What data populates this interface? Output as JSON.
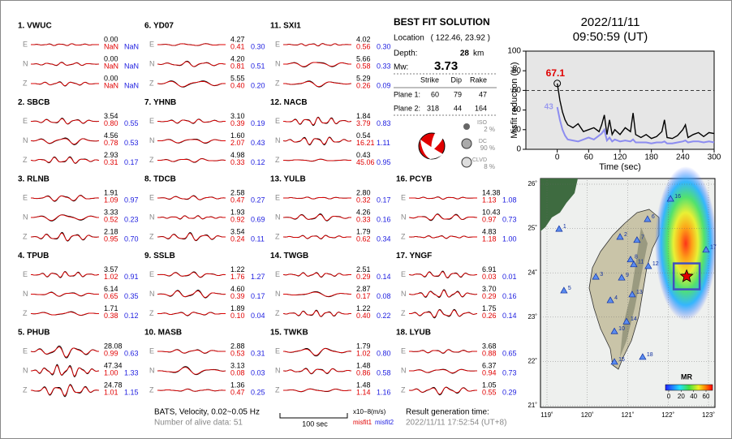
{
  "stations": [
    {
      "title": "1. VWUC",
      "components": [
        {
          "label": "E",
          "amplitude": "0.00",
          "misfit1": "NaN",
          "misfit2": "NaN"
        },
        {
          "label": "N",
          "amplitude": "0.00",
          "misfit1": "NaN",
          "misfit2": "NaN"
        },
        {
          "label": "Z",
          "amplitude": "0.00",
          "misfit1": "NaN",
          "misfit2": "NaN"
        }
      ]
    },
    {
      "title": "2. SBCB",
      "components": [
        {
          "label": "E",
          "amplitude": "3.54",
          "misfit1": "0.80",
          "misfit2": "0.55"
        },
        {
          "label": "N",
          "amplitude": "4.56",
          "misfit1": "0.78",
          "misfit2": "0.53"
        },
        {
          "label": "Z",
          "amplitude": "2.93",
          "misfit1": "0.31",
          "misfit2": "0.17"
        }
      ]
    },
    {
      "title": "3. RLNB",
      "components": [
        {
          "label": "E",
          "amplitude": "1.91",
          "misfit1": "1.09",
          "misfit2": "0.97"
        },
        {
          "label": "N",
          "amplitude": "3.33",
          "misfit1": "0.52",
          "misfit2": "0.23"
        },
        {
          "label": "Z",
          "amplitude": "2.18",
          "misfit1": "0.95",
          "misfit2": "0.70"
        }
      ]
    },
    {
      "title": "4. TPUB",
      "components": [
        {
          "label": "E",
          "amplitude": "3.57",
          "misfit1": "1.02",
          "misfit2": "0.91"
        },
        {
          "label": "N",
          "amplitude": "6.14",
          "misfit1": "0.65",
          "misfit2": "0.35"
        },
        {
          "label": "Z",
          "amplitude": "1.71",
          "misfit1": "0.38",
          "misfit2": "0.12"
        }
      ]
    },
    {
      "title": "5. PHUB",
      "components": [
        {
          "label": "E",
          "amplitude": "28.08",
          "misfit1": "0.99",
          "misfit2": "0.63"
        },
        {
          "label": "N",
          "amplitude": "47.34",
          "misfit1": "1.00",
          "misfit2": "1.33"
        },
        {
          "label": "Z",
          "amplitude": "24.78",
          "misfit1": "1.01",
          "misfit2": "1.15"
        }
      ]
    },
    {
      "title": "6. YD07",
      "components": [
        {
          "label": "E",
          "amplitude": "4.27",
          "misfit1": "0.41",
          "misfit2": "0.30"
        },
        {
          "label": "N",
          "amplitude": "4.20",
          "misfit1": "0.81",
          "misfit2": "0.51"
        },
        {
          "label": "Z",
          "amplitude": "5.55",
          "misfit1": "0.40",
          "misfit2": "0.20"
        }
      ]
    },
    {
      "title": "7. YHNB",
      "components": [
        {
          "label": "E",
          "amplitude": "3.10",
          "misfit1": "0.39",
          "misfit2": "0.19"
        },
        {
          "label": "N",
          "amplitude": "1.60",
          "misfit1": "2.07",
          "misfit2": "0.43"
        },
        {
          "label": "Z",
          "amplitude": "4.98",
          "misfit1": "0.33",
          "misfit2": "0.12"
        }
      ]
    },
    {
      "title": "8. TDCB",
      "components": [
        {
          "label": "E",
          "amplitude": "2.58",
          "misfit1": "0.47",
          "misfit2": "0.27"
        },
        {
          "label": "N",
          "amplitude": "1.93",
          "misfit1": "0.92",
          "misfit2": "0.69"
        },
        {
          "label": "Z",
          "amplitude": "3.54",
          "misfit1": "0.24",
          "misfit2": "0.11"
        }
      ]
    },
    {
      "title": "9. SSLB",
      "components": [
        {
          "label": "E",
          "amplitude": "1.22",
          "misfit1": "1.76",
          "misfit2": "1.27"
        },
        {
          "label": "N",
          "amplitude": "4.60",
          "misfit1": "0.39",
          "misfit2": "0.17"
        },
        {
          "label": "Z",
          "amplitude": "1.89",
          "misfit1": "0.10",
          "misfit2": "0.04"
        }
      ]
    },
    {
      "title": "10. MASB",
      "components": [
        {
          "label": "E",
          "amplitude": "2.88",
          "misfit1": "0.53",
          "misfit2": "0.31"
        },
        {
          "label": "N",
          "amplitude": "3.13",
          "misfit1": "0.08",
          "misfit2": "0.03"
        },
        {
          "label": "Z",
          "amplitude": "1.36",
          "misfit1": "0.47",
          "misfit2": "0.25"
        }
      ]
    },
    {
      "title": "11. SXI1",
      "components": [
        {
          "label": "E",
          "amplitude": "4.02",
          "misfit1": "0.56",
          "misfit2": "0.30"
        },
        {
          "label": "N",
          "amplitude": "5.66",
          "misfit1": "0.58",
          "misfit2": "0.33"
        },
        {
          "label": "Z",
          "amplitude": "5.29",
          "misfit1": "0.26",
          "misfit2": "0.09"
        }
      ]
    },
    {
      "title": "12. NACB",
      "components": [
        {
          "label": "E",
          "amplitude": "1.84",
          "misfit1": "3.79",
          "misfit2": "0.83"
        },
        {
          "label": "N",
          "amplitude": "0.54",
          "misfit1": "16.21",
          "misfit2": "1.11"
        },
        {
          "label": "Z",
          "amplitude": "0.43",
          "misfit1": "45.06",
          "misfit2": "0.95"
        }
      ]
    },
    {
      "title": "13. YULB",
      "components": [
        {
          "label": "E",
          "amplitude": "2.80",
          "misfit1": "0.32",
          "misfit2": "0.17"
        },
        {
          "label": "N",
          "amplitude": "4.26",
          "misfit1": "0.33",
          "misfit2": "0.16"
        },
        {
          "label": "Z",
          "amplitude": "1.79",
          "misfit1": "0.62",
          "misfit2": "0.34"
        }
      ]
    },
    {
      "title": "14. TWGB",
      "components": [
        {
          "label": "E",
          "amplitude": "2.51",
          "misfit1": "0.29",
          "misfit2": "0.14"
        },
        {
          "label": "N",
          "amplitude": "2.87",
          "misfit1": "0.17",
          "misfit2": "0.08"
        },
        {
          "label": "Z",
          "amplitude": "1.22",
          "misfit1": "0.40",
          "misfit2": "0.22"
        }
      ]
    },
    {
      "title": "15. TWKB",
      "components": [
        {
          "label": "E",
          "amplitude": "1.79",
          "misfit1": "1.02",
          "misfit2": "0.80"
        },
        {
          "label": "N",
          "amplitude": "1.48",
          "misfit1": "0.86",
          "misfit2": "0.58"
        },
        {
          "label": "Z",
          "amplitude": "1.48",
          "misfit1": "1.14",
          "misfit2": "1.16"
        }
      ]
    },
    {
      "title": "16. PCYB",
      "components": [
        {
          "label": "E",
          "amplitude": "14.38",
          "misfit1": "1.13",
          "misfit2": "1.08"
        },
        {
          "label": "N",
          "amplitude": "10.43",
          "misfit1": "0.97",
          "misfit2": "0.73"
        },
        {
          "label": "Z",
          "amplitude": "4.83",
          "misfit1": "1.18",
          "misfit2": "1.00"
        }
      ]
    },
    {
      "title": "17. YNGF",
      "components": [
        {
          "label": "E",
          "amplitude": "6.91",
          "misfit1": "0.03",
          "misfit2": "0.01"
        },
        {
          "label": "N",
          "amplitude": "3.70",
          "misfit1": "0.29",
          "misfit2": "0.16"
        },
        {
          "label": "Z",
          "amplitude": "1.75",
          "misfit1": "0.26",
          "misfit2": "0.14"
        }
      ]
    },
    {
      "title": "18. LYUB",
      "components": [
        {
          "label": "E",
          "amplitude": "3.68",
          "misfit1": "0.88",
          "misfit2": "0.65"
        },
        {
          "label": "N",
          "amplitude": "6.37",
          "misfit1": "0.94",
          "misfit2": "0.73"
        },
        {
          "label": "Z",
          "amplitude": "1.05",
          "misfit1": "0.55",
          "misfit2": "0.29"
        }
      ]
    }
  ],
  "solution": {
    "title": "BEST FIT SOLUTION",
    "location_label": "Location",
    "location": "( 122.46, 23.92 )",
    "depth_label": "Depth:",
    "depth": "28",
    "depth_unit": "km",
    "mw_label": "Mw:",
    "mw": "3.73",
    "table_headers": [
      "Strike",
      "Dip",
      "Rake"
    ],
    "planes": [
      {
        "label": "Plane 1:",
        "values": [
          60,
          79,
          47
        ]
      },
      {
        "label": "Plane 2:",
        "values": [
          318,
          44,
          164
        ]
      }
    ],
    "components": [
      {
        "name": "ISO",
        "value": "2 %"
      },
      {
        "name": "DC",
        "value": "90 %"
      },
      {
        "name": "CLVD",
        "value": "8 %"
      }
    ]
  },
  "event_time": {
    "date": "2022/11/11",
    "time": "09:50:59  (UT)"
  },
  "chart_data": {
    "type": "line",
    "xlabel": "Time (sec)",
    "ylabel": "Misfit reduction (%)",
    "x": [
      -2,
      0,
      5,
      10,
      15,
      20,
      30,
      40,
      50,
      60,
      70,
      80,
      85,
      90,
      95,
      100,
      105,
      110,
      120,
      130,
      140,
      145,
      150,
      160,
      170,
      180,
      190,
      200,
      205,
      210,
      220,
      230,
      240,
      245,
      250,
      260,
      270,
      280,
      290,
      300
    ],
    "series": [
      {
        "name": "misfit reduction",
        "color": "#000000",
        "values": [
          null,
          67.1,
          50,
          38,
          30,
          25,
          22,
          26,
          18,
          20,
          22,
          18,
          25,
          35,
          15,
          30,
          15,
          20,
          15,
          22,
          18,
          37,
          15,
          12,
          15,
          11,
          13,
          18,
          30,
          12,
          11,
          14,
          20,
          25,
          12,
          15,
          17,
          13,
          17,
          16
        ]
      },
      {
        "name": "secondary",
        "color": "#8c8cf0",
        "values": [
          null,
          43,
          30,
          20,
          14,
          10,
          9,
          8,
          10,
          12,
          10,
          14,
          16,
          20,
          9,
          12,
          8,
          10,
          8,
          9,
          8,
          10,
          7,
          7,
          7,
          6,
          7,
          7,
          8,
          6,
          6,
          7,
          8,
          9,
          7,
          8,
          8,
          7,
          8,
          7
        ]
      }
    ],
    "annotations": [
      {
        "text": "67.1",
        "x": 0,
        "y": 67.1,
        "color": "#e00000"
      },
      {
        "text": "43",
        "x": 0,
        "y": 43,
        "color": "#9a9aee"
      }
    ],
    "reference_line": 60,
    "xlim": [
      -60,
      300
    ],
    "xticks": [
      0,
      60,
      120,
      180,
      240,
      300
    ],
    "ylim": [
      0,
      100
    ],
    "yticks": [
      0,
      20,
      40,
      60,
      80,
      100
    ]
  },
  "map": {
    "lonlim": [
      119,
      123
    ],
    "latlim": [
      21,
      26
    ],
    "lonticks": [
      {
        "value": 119,
        "label": "119˚"
      },
      {
        "value": 120,
        "label": "120˚"
      },
      {
        "value": 121,
        "label": "121˚"
      },
      {
        "value": 122,
        "label": "122˚"
      },
      {
        "value": 123,
        "label": "123˚"
      }
    ],
    "latticks": [
      {
        "value": 21,
        "label": "21˚"
      },
      {
        "value": 22,
        "label": "22˚"
      },
      {
        "value": 23,
        "label": "23˚"
      },
      {
        "value": 24,
        "label": "24˚"
      },
      {
        "value": 25,
        "label": "25˚"
      },
      {
        "value": 26,
        "label": "26˚"
      }
    ],
    "epicenter": [
      122.46,
      23.92
    ],
    "stations": [
      {
        "label": "1",
        "lon": 119.3,
        "lat": 24.99
      },
      {
        "label": "2",
        "lon": 120.81,
        "lat": 24.81
      },
      {
        "label": "3",
        "lon": 120.21,
        "lat": 23.91
      },
      {
        "label": "4",
        "lon": 120.57,
        "lat": 23.38
      },
      {
        "label": "5",
        "lon": 119.42,
        "lat": 23.6
      },
      {
        "label": "6",
        "lon": 121.49,
        "lat": 25.21
      },
      {
        "label": "7",
        "lon": 121.23,
        "lat": 24.74
      },
      {
        "label": "8",
        "lon": 121.07,
        "lat": 24.3
      },
      {
        "label": "9",
        "lon": 120.85,
        "lat": 23.89
      },
      {
        "label": "10",
        "lon": 120.67,
        "lat": 22.68
      },
      {
        "label": "11",
        "lon": 121.15,
        "lat": 24.19
      },
      {
        "label": "12",
        "lon": 121.51,
        "lat": 24.15
      },
      {
        "label": "13",
        "lon": 121.11,
        "lat": 23.51
      },
      {
        "label": "14",
        "lon": 120.97,
        "lat": 22.9
      },
      {
        "label": "15",
        "lon": 120.67,
        "lat": 21.99
      },
      {
        "label": "16",
        "lon": 122.06,
        "lat": 25.67
      },
      {
        "label": "17",
        "lon": 122.94,
        "lat": 24.52
      },
      {
        "label": "18",
        "lon": 121.37,
        "lat": 22.1
      }
    ],
    "colorbar": {
      "title": "MR",
      "lim": [
        0,
        60
      ],
      "ticks": [
        0,
        20,
        40,
        60
      ]
    }
  },
  "footer": {
    "filter": "BATS, Velocity, 0.02~0.05 Hz",
    "alive": "Number of alive data: 51",
    "scale": "100 sec",
    "units": "x10−8(m/s)",
    "misfit1": "misfit1",
    "misfit2": "misfit2",
    "result_label": "Result generation time:",
    "result_time": "2022/11/11 17:52:54 (UT+8)"
  }
}
